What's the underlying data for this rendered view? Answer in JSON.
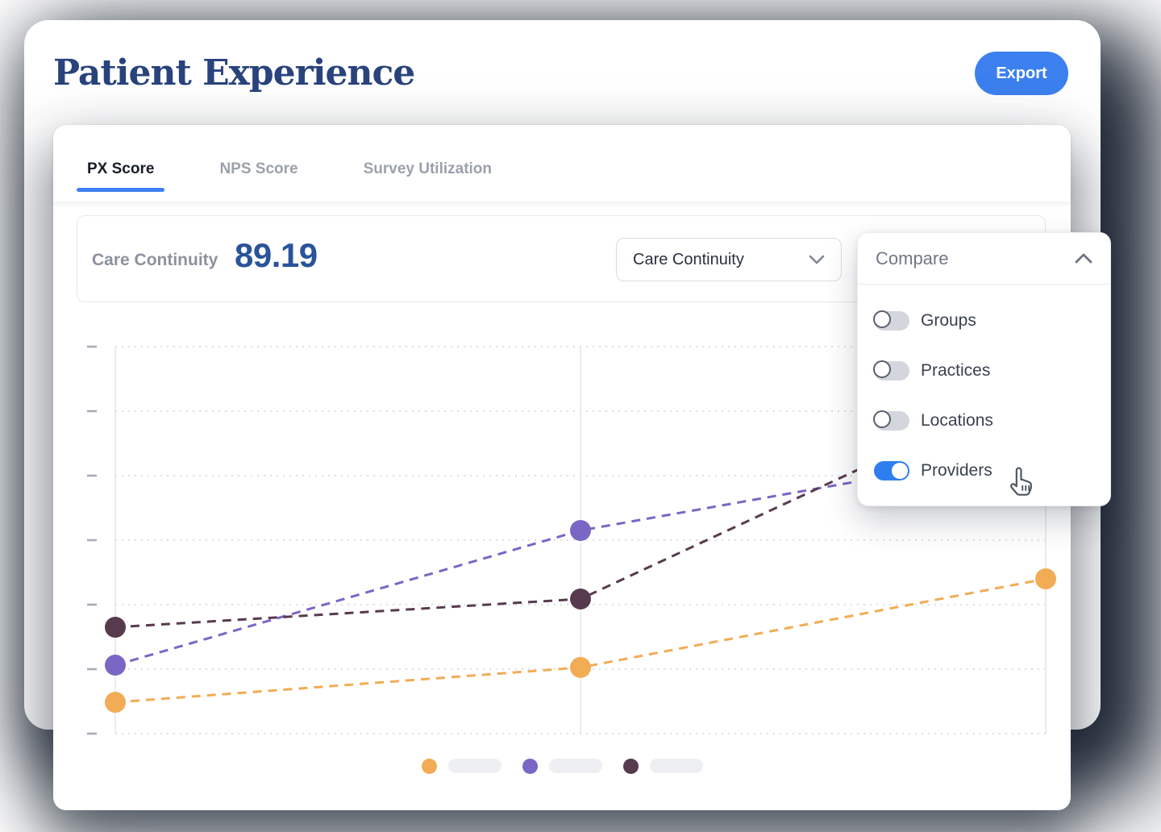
{
  "window": {
    "title": "Patient Experience",
    "export_label": "Export"
  },
  "tabs": [
    {
      "label": "PX Score",
      "active": true
    },
    {
      "label": "NPS Score",
      "active": false
    },
    {
      "label": "Survey Utilization",
      "active": false
    }
  ],
  "score": {
    "label": "Care Continuity",
    "value": "89.19"
  },
  "metric_select": {
    "value": "Care Continuity"
  },
  "compare": {
    "header": "Compare",
    "options": [
      {
        "label": "Groups",
        "enabled": false
      },
      {
        "label": "Practices",
        "enabled": false
      },
      {
        "label": "Locations",
        "enabled": false
      },
      {
        "label": "Providers",
        "enabled": true
      }
    ]
  },
  "colors": {
    "accent_blue": "#3C80EF",
    "tab_underline": "#3F80F0",
    "title_navy": "#29437C",
    "score_value_blue": "#2A549A",
    "toggle_on_blue": "#2E7EF0",
    "background_halo": "#222E3C",
    "series_orange": "#F2AC55",
    "series_purple": "#7A66C5",
    "series_maroon": "#573A4E",
    "gridline": "#DCDFE5",
    "axis_line": "#E3E5EA",
    "tick": "#A6ACB6",
    "legend_pill_gray": "#EEEFF2"
  },
  "chart_data": {
    "type": "line",
    "title": "",
    "x_points": 3,
    "x_tick_labels_visible": false,
    "y_tick_labels_visible": false,
    "y_axis": {
      "normalized_scale": [
        0,
        100
      ],
      "gridline_count": 7,
      "gridline_style": "dotted"
    },
    "line_style": "dashed",
    "legend": {
      "position": "bottom-center",
      "labels_redacted_as_pills": true
    },
    "series": [
      {
        "name_redacted": true,
        "color": "#F2AC55",
        "values": [
          8.1,
          17.1,
          40.0
        ],
        "last_point_hidden_behind_panel": false
      },
      {
        "name_redacted": true,
        "color": "#7A66C5",
        "values": [
          17.7,
          52.5,
          73.8
        ],
        "last_point_hidden_behind_panel": true
      },
      {
        "name_redacted": true,
        "color": "#573A4E",
        "values": [
          27.5,
          34.8,
          90.8
        ],
        "last_point_hidden_behind_panel": true
      }
    ]
  }
}
